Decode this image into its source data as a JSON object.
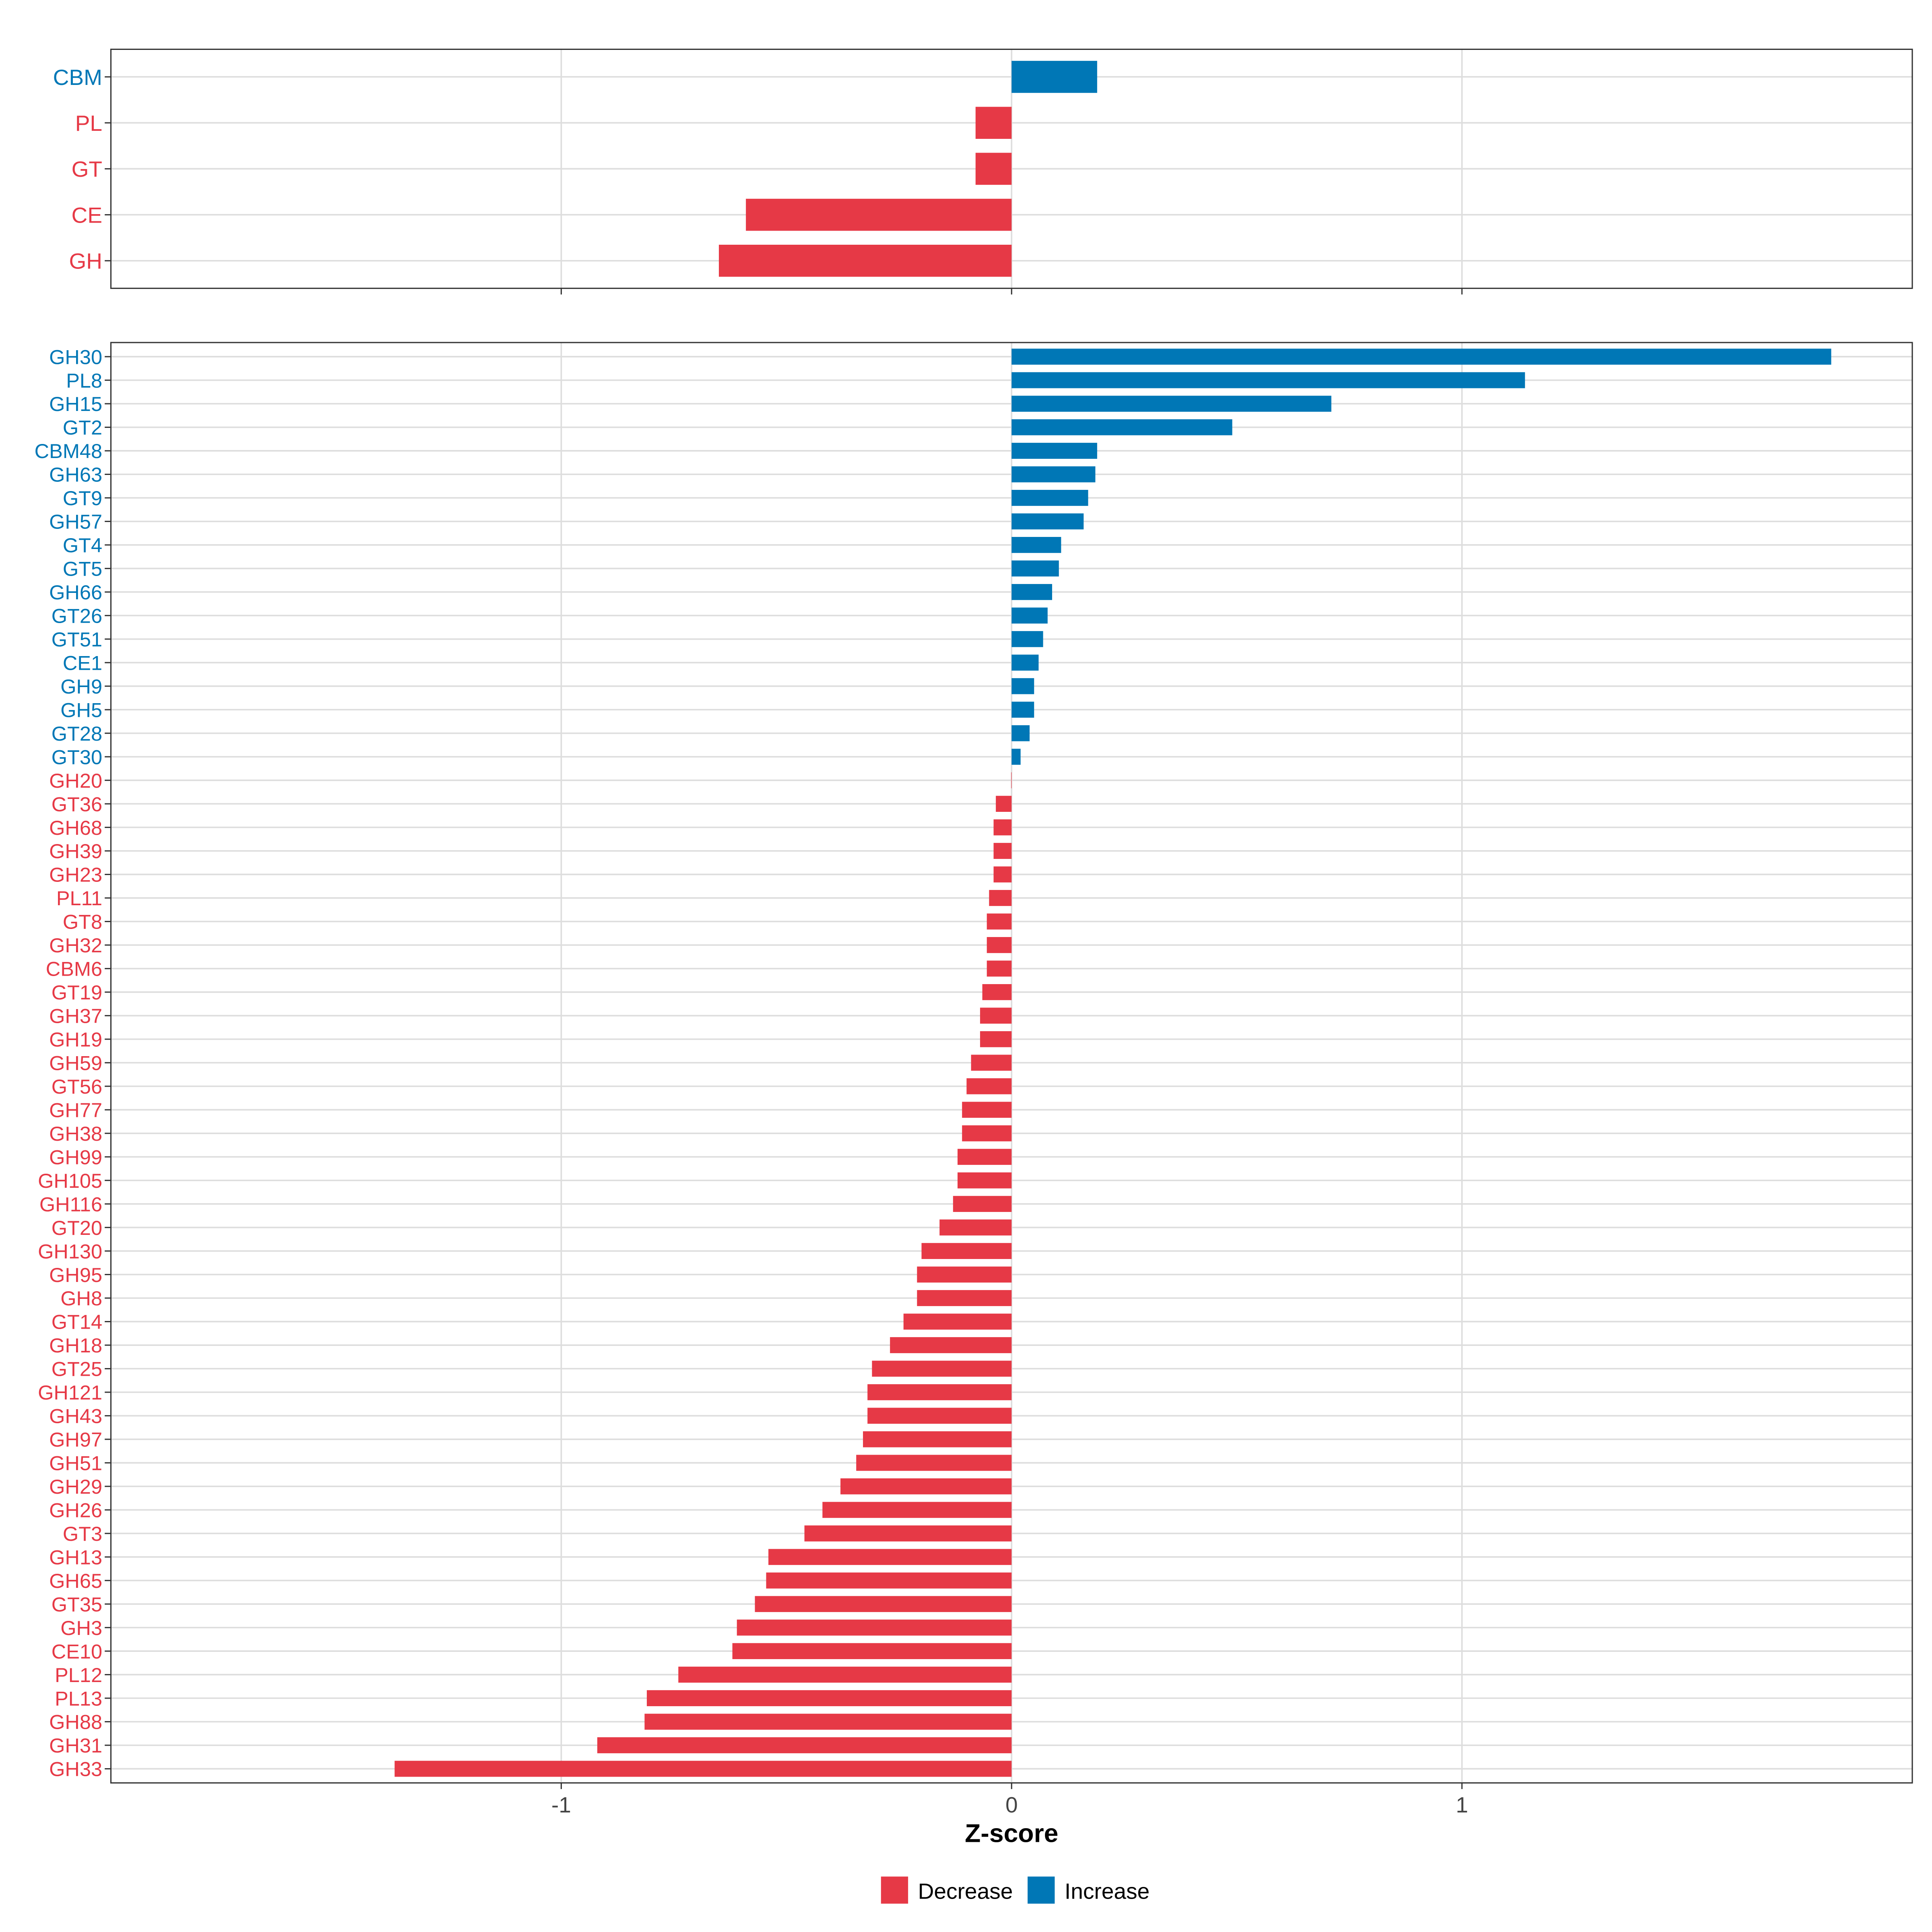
{
  "chart_data": [
    {
      "type": "bar",
      "orientation": "horizontal",
      "panel": "top",
      "categories": [
        "CBM",
        "PL",
        "GT",
        "CE",
        "GH"
      ],
      "values": [
        0.19,
        -0.08,
        -0.08,
        -0.59,
        -0.65
      ],
      "xlim": [
        -2,
        2
      ],
      "xticks": [
        -1,
        0,
        1
      ],
      "grid": true
    },
    {
      "type": "bar",
      "orientation": "horizontal",
      "panel": "bottom",
      "categories": [
        "GH30",
        "PL8",
        "GH15",
        "GT2",
        "CBM48",
        "GH63",
        "GT9",
        "GH57",
        "GT4",
        "GT5",
        "GH66",
        "GT26",
        "GT51",
        "CE1",
        "GH9",
        "GH5",
        "GT28",
        "GT30",
        "GH20",
        "GT36",
        "GH68",
        "GH39",
        "GH23",
        "PL11",
        "GT8",
        "GH32",
        "CBM6",
        "GT19",
        "GH37",
        "GH19",
        "GH59",
        "GT56",
        "GH77",
        "GH38",
        "GH99",
        "GH105",
        "GH116",
        "GT20",
        "GH130",
        "GH95",
        "GH8",
        "GT14",
        "GH18",
        "GT25",
        "GH121",
        "GH43",
        "GH97",
        "GH51",
        "GH29",
        "GH26",
        "GT3",
        "GH13",
        "GH65",
        "GT35",
        "GH3",
        "CE10",
        "PL12",
        "PL13",
        "GH88",
        "GH31",
        "GH33"
      ],
      "values": [
        1.82,
        1.14,
        0.71,
        0.49,
        0.19,
        0.186,
        0.17,
        0.16,
        0.11,
        0.105,
        0.09,
        0.08,
        0.07,
        0.06,
        0.05,
        0.05,
        0.04,
        0.02,
        -0.001,
        -0.035,
        -0.04,
        -0.04,
        -0.04,
        -0.05,
        -0.055,
        -0.055,
        -0.055,
        -0.065,
        -0.07,
        -0.07,
        -0.09,
        -0.1,
        -0.11,
        -0.11,
        -0.12,
        -0.12,
        -0.13,
        -0.16,
        -0.2,
        -0.21,
        -0.21,
        -0.24,
        -0.27,
        -0.31,
        -0.32,
        -0.32,
        -0.33,
        -0.345,
        -0.38,
        -0.42,
        -0.46,
        -0.54,
        -0.545,
        -0.57,
        -0.61,
        -0.62,
        -0.74,
        -0.81,
        -0.815,
        -0.92,
        -1.37
      ],
      "xlim": [
        -2,
        2
      ],
      "xticks": [
        -1,
        0,
        1
      ],
      "xlabel": "Z-score",
      "grid": true
    }
  ],
  "tick_labels": [
    "-1",
    "0",
    "1"
  ],
  "xlabel": "Z-score",
  "legend": {
    "placement": "bottom",
    "items": [
      {
        "label": "Decrease",
        "color": "#E63946"
      },
      {
        "label": "Increase",
        "color": "#0077B6"
      }
    ]
  },
  "colors": {
    "decrease": "#E63946",
    "increase": "#0077B6",
    "grid": "#DDDDDD",
    "axis": "#333333"
  }
}
